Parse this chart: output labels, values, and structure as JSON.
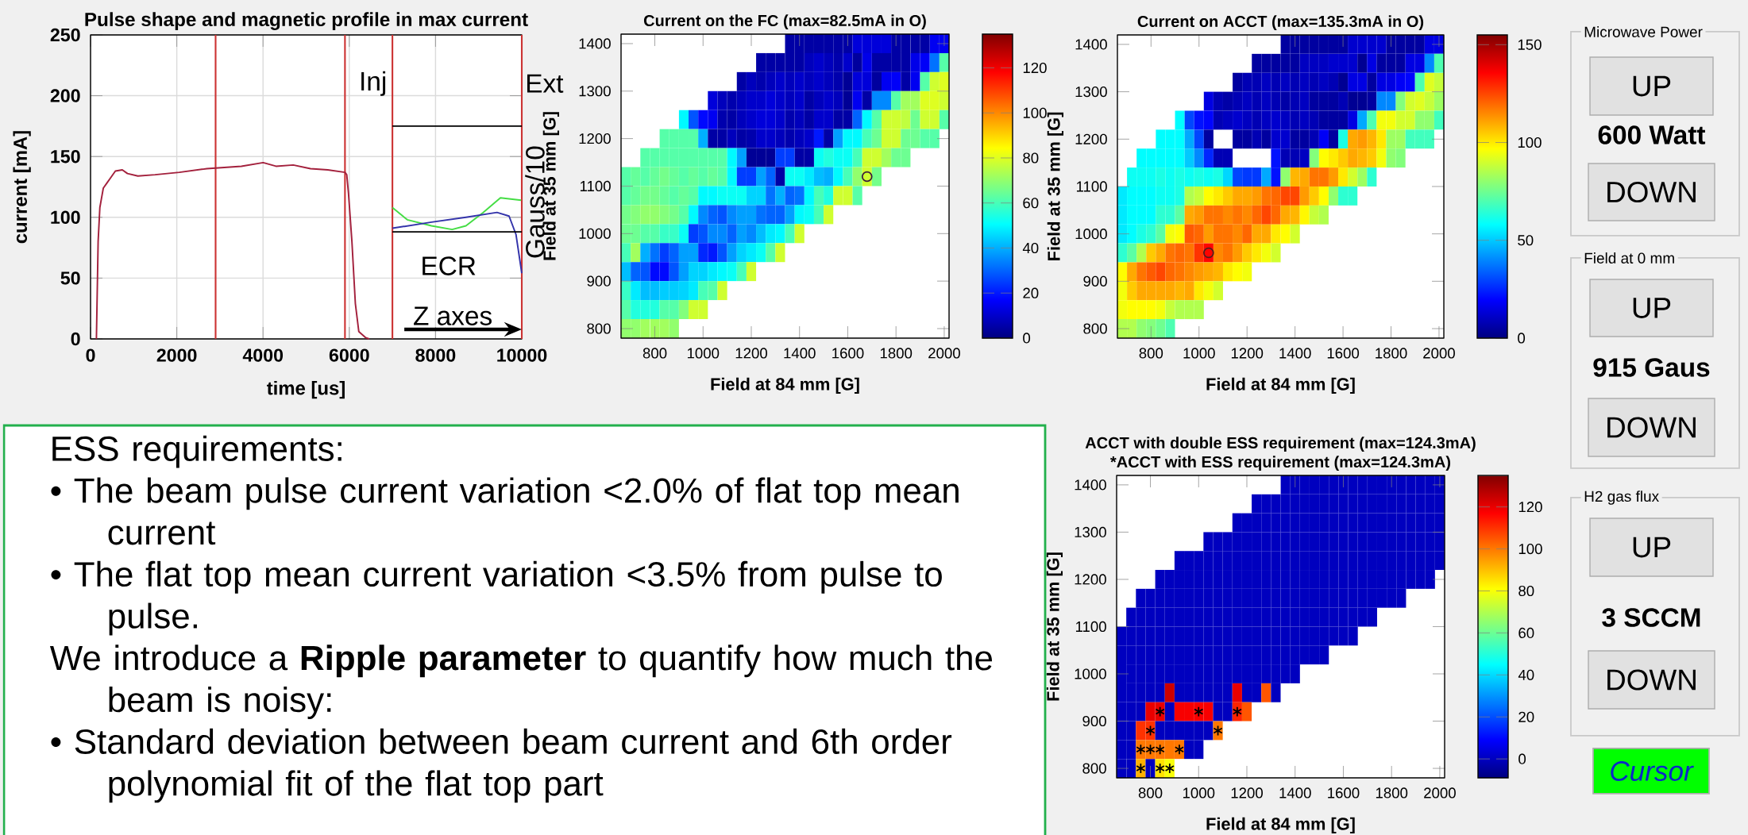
{
  "chart_data": [
    {
      "type": "line",
      "title": "Pulse shape and magnetic profile in max current",
      "xlabel": "time [us]",
      "ylabel": "current [mA]",
      "y2label": "Gauss/10",
      "xlim": [
        0,
        10000
      ],
      "ylim": [
        0,
        250
      ],
      "xticks": [
        0,
        2000,
        4000,
        6000,
        8000,
        10000
      ],
      "yticks": [
        0,
        50,
        100,
        150,
        200,
        250
      ],
      "grid": true,
      "series": [
        {
          "color": "#a3203c",
          "x": [
            136,
            176,
            216,
            296,
            376,
            456,
            576,
            736,
            856,
            1097,
            1497,
            2058,
            2698,
            3499,
            4003,
            4300,
            4700,
            5100,
            5500,
            5900,
            5941,
            5981,
            6061,
            6141,
            6221,
            6381,
            6460
          ],
          "values": [
            0,
            80,
            108,
            124,
            128,
            132,
            138,
            139,
            136,
            134,
            135,
            137,
            140,
            142,
            145,
            142,
            143,
            140,
            139,
            137,
            135,
            120,
            80,
            29,
            6,
            1,
            0
          ]
        },
        {
          "color": "#44dd44",
          "x": [
            7000,
            7344,
            7905,
            8385,
            8705,
            9105,
            9505,
            9985
          ],
          "values": [
            108,
            98,
            93,
            90,
            93,
            104,
            116,
            114
          ]
        },
        {
          "color": "#3333aa",
          "x": [
            7000,
            7905,
            8705,
            9425,
            9705,
            9865,
            10000
          ],
          "values": [
            91,
            96,
            100,
            104,
            101,
            86,
            54
          ]
        },
        {
          "color": "#000000",
          "x": [
            7000,
            10000
          ],
          "values": [
            175,
            175
          ]
        },
        {
          "color": "#000000",
          "x": [
            7000,
            10000
          ],
          "values": [
            88,
            88
          ]
        }
      ],
      "ref_lines": [
        {
          "axis": "x",
          "value": 2900,
          "color": "#cc3333"
        },
        {
          "axis": "x",
          "value": 5900,
          "color": "#cc3333"
        },
        {
          "axis": "x",
          "value": 7000,
          "color": "#cc3333"
        },
        {
          "axis": "x",
          "value": 10000,
          "color": "#cc3333"
        }
      ],
      "annotations": [
        "Inj",
        "Ext",
        "ECR",
        "Z axes"
      ]
    },
    {
      "type": "heatmap",
      "title": "Current on the FC (max=82.5mA in O)",
      "xlabel": "Field at 84 mm [G]",
      "ylabel": "Field at 35 mm [G]",
      "x": [
        680,
        720,
        760,
        800,
        840,
        880,
        920,
        960,
        1000,
        1040,
        1080,
        1120,
        1160,
        1200,
        1240,
        1280,
        1320,
        1360,
        1400,
        1440,
        1480,
        1520,
        1560,
        1600,
        1640,
        1680,
        1720,
        1760,
        1800,
        1840,
        1880,
        1920,
        1960,
        2000
      ],
      "y": [
        1400,
        1360,
        1320,
        1280,
        1240,
        1200,
        1160,
        1120,
        1080,
        1040,
        1000,
        960,
        920,
        880,
        840,
        800
      ],
      "xlim": [
        660,
        2020
      ],
      "ylim": [
        780,
        1420
      ],
      "xticks": [
        800,
        1000,
        1200,
        1400,
        1600,
        1800,
        2000
      ],
      "yticks": [
        800,
        900,
        1000,
        1100,
        1200,
        1300,
        1400
      ],
      "clim": [
        0,
        135
      ],
      "cticks": [
        0,
        20,
        40,
        60,
        80,
        100,
        120
      ],
      "cells": [
        [
          null,
          null,
          null,
          null,
          null,
          null,
          null,
          null,
          null,
          null,
          null,
          null,
          null,
          null,
          null,
          null,
          null,
          5,
          5,
          5,
          5,
          5,
          5,
          5,
          12,
          12,
          12,
          12,
          5,
          5,
          5,
          5,
          15,
          15
        ],
        [
          null,
          null,
          null,
          null,
          null,
          null,
          null,
          null,
          null,
          null,
          null,
          null,
          null,
          null,
          5,
          5,
          5,
          5,
          5,
          8,
          10,
          8,
          6,
          10,
          4,
          14,
          5,
          5,
          5,
          5,
          14,
          16,
          32,
          62
        ],
        [
          null,
          null,
          null,
          null,
          null,
          null,
          null,
          null,
          null,
          null,
          null,
          null,
          5,
          8,
          6,
          8,
          10,
          8,
          10,
          8,
          10,
          8,
          6,
          3,
          12,
          12,
          4,
          15,
          16,
          5,
          15,
          62,
          78,
          80
        ],
        [
          null,
          null,
          null,
          null,
          null,
          null,
          null,
          null,
          null,
          12,
          8,
          6,
          8,
          10,
          10,
          12,
          10,
          8,
          10,
          5,
          8,
          10,
          8,
          3,
          15,
          5,
          35,
          35,
          62,
          72,
          72,
          80,
          80,
          78
        ],
        [
          null,
          null,
          null,
          null,
          null,
          null,
          50,
          28,
          18,
          15,
          6,
          5,
          8,
          10,
          12,
          12,
          10,
          6,
          8,
          5,
          10,
          10,
          5,
          5,
          30,
          50,
          62,
          78,
          78,
          76,
          65,
          78,
          78,
          62
        ],
        [
          null,
          null,
          null,
          null,
          62,
          62,
          62,
          62,
          40,
          5,
          5,
          8,
          5,
          6,
          10,
          10,
          8,
          6,
          8,
          10,
          20,
          5,
          38,
          50,
          50,
          60,
          65,
          78,
          78,
          65,
          65,
          62,
          62,
          null
        ],
        [
          null,
          null,
          62,
          62,
          62,
          62,
          62,
          62,
          62,
          62,
          62,
          50,
          38,
          3,
          3,
          3,
          25,
          25,
          5,
          5,
          52,
          55,
          52,
          52,
          60,
          78,
          78,
          72,
          65,
          65,
          null,
          null,
          null,
          null
        ],
        [
          62,
          64,
          62,
          64,
          66,
          64,
          62,
          64,
          62,
          64,
          62,
          50,
          25,
          25,
          38,
          30,
          5,
          52,
          52,
          48,
          42,
          40,
          50,
          60,
          70,
          78,
          66,
          null,
          null,
          null,
          null,
          null,
          null,
          null
        ],
        [
          62,
          64,
          66,
          66,
          64,
          62,
          64,
          62,
          50,
          50,
          52,
          52,
          52,
          45,
          45,
          32,
          40,
          30,
          32,
          50,
          60,
          55,
          78,
          78,
          62,
          null,
          null,
          null,
          null,
          null,
          null,
          null,
          null,
          null
        ],
        [
          66,
          68,
          70,
          70,
          68,
          66,
          62,
          50,
          35,
          30,
          28,
          35,
          38,
          38,
          32,
          30,
          30,
          38,
          50,
          52,
          60,
          78,
          null,
          null,
          null,
          null,
          null,
          null,
          null,
          null,
          null,
          null,
          null,
          null
        ],
        [
          65,
          65,
          62,
          62,
          58,
          58,
          52,
          25,
          28,
          35,
          35,
          30,
          38,
          35,
          42,
          48,
          50,
          60,
          78,
          null,
          null,
          null,
          null,
          null,
          null,
          null,
          null,
          null,
          null,
          null,
          null,
          null,
          null,
          null
        ],
        [
          60,
          72,
          40,
          32,
          25,
          30,
          38,
          38,
          22,
          20,
          28,
          38,
          45,
          48,
          52,
          62,
          78,
          null,
          null,
          null,
          null,
          null,
          null,
          null,
          null,
          null,
          null,
          null,
          null,
          null,
          null,
          null,
          null,
          null
        ],
        [
          42,
          30,
          28,
          18,
          18,
          28,
          38,
          45,
          45,
          48,
          50,
          52,
          60,
          78,
          null,
          null,
          null,
          null,
          null,
          null,
          null,
          null,
          null,
          null,
          null,
          null,
          null,
          null,
          null,
          null,
          null,
          null,
          null,
          null
        ],
        [
          58,
          48,
          42,
          42,
          44,
          44,
          45,
          48,
          60,
          62,
          78,
          null,
          null,
          null,
          null,
          null,
          null,
          null,
          null,
          null,
          null,
          null,
          null,
          null,
          null,
          null,
          null,
          null,
          null,
          null,
          null,
          null,
          null,
          null
        ],
        [
          62,
          55,
          55,
          55,
          62,
          62,
          68,
          78,
          78,
          null,
          null,
          null,
          null,
          null,
          null,
          null,
          null,
          null,
          null,
          null,
          null,
          null,
          null,
          null,
          null,
          null,
          null,
          null,
          null,
          null,
          null,
          null,
          null,
          null
        ],
        [
          70,
          70,
          72,
          72,
          72,
          70,
          null,
          null,
          null,
          null,
          null,
          null,
          null,
          null,
          null,
          null,
          null,
          null,
          null,
          null,
          null,
          null,
          null,
          null,
          null,
          null,
          null,
          null,
          null,
          null,
          null,
          null,
          null,
          null
        ]
      ],
      "series": [
        {
          "type": "scatter",
          "marker": "circle",
          "color": "#3c1e3c",
          "x": [
            1680
          ],
          "values": [
            1120
          ]
        }
      ]
    },
    {
      "type": "heatmap",
      "title": "Current on ACCT (max=135.3mA in O)",
      "xlabel": "Field at 84 mm [G]",
      "ylabel": "Field at 35 mm [G]",
      "x": [
        680,
        720,
        760,
        800,
        840,
        880,
        920,
        960,
        1000,
        1040,
        1080,
        1120,
        1160,
        1200,
        1240,
        1280,
        1320,
        1360,
        1400,
        1440,
        1480,
        1520,
        1560,
        1600,
        1640,
        1680,
        1720,
        1760,
        1800,
        1840,
        1880,
        1920,
        1960,
        2000
      ],
      "y": [
        1400,
        1360,
        1320,
        1280,
        1240,
        1200,
        1160,
        1120,
        1080,
        1040,
        1000,
        960,
        920,
        880,
        840,
        800
      ],
      "xlim": [
        660,
        2020
      ],
      "ylim": [
        780,
        1420
      ],
      "xticks": [
        800,
        1000,
        1200,
        1400,
        1600,
        1800,
        2000
      ],
      "yticks": [
        800,
        900,
        1000,
        1100,
        1200,
        1300,
        1400
      ],
      "clim": [
        0,
        155
      ],
      "cticks": [
        0,
        50,
        100,
        150
      ],
      "cells": [
        [
          null,
          null,
          null,
          null,
          null,
          null,
          null,
          null,
          null,
          null,
          null,
          null,
          null,
          null,
          null,
          null,
          null,
          5,
          5,
          5,
          5,
          5,
          5,
          5,
          12,
          12,
          12,
          12,
          5,
          5,
          5,
          5,
          15,
          15
        ],
        [
          null,
          null,
          null,
          null,
          null,
          null,
          null,
          null,
          null,
          null,
          null,
          null,
          null,
          null,
          5,
          5,
          5,
          5,
          5,
          10,
          10,
          10,
          12,
          12,
          12,
          3,
          15,
          5,
          5,
          5,
          15,
          15,
          40,
          70
        ],
        [
          null,
          null,
          null,
          null,
          null,
          null,
          null,
          null,
          null,
          null,
          null,
          null,
          5,
          8,
          8,
          10,
          8,
          10,
          8,
          10,
          8,
          10,
          8,
          3,
          15,
          15,
          5,
          15,
          15,
          18,
          20,
          70,
          92,
          88
        ],
        [
          null,
          null,
          null,
          null,
          null,
          null,
          null,
          null,
          null,
          15,
          8,
          6,
          8,
          10,
          8,
          10,
          8,
          6,
          8,
          10,
          5,
          5,
          5,
          8,
          3,
          3,
          5,
          40,
          40,
          78,
          90,
          92,
          88,
          82
        ],
        [
          null,
          null,
          null,
          null,
          null,
          null,
          58,
          30,
          22,
          20,
          8,
          10,
          12,
          10,
          8,
          10,
          12,
          10,
          8,
          10,
          8,
          5,
          5,
          5,
          15,
          45,
          70,
          95,
          95,
          90,
          90,
          80,
          80,
          68
        ],
        [
          null,
          null,
          null,
          null,
          58,
          58,
          58,
          45,
          30,
          5,
          null,
          null,
          5,
          5,
          8,
          5,
          12,
          12,
          5,
          5,
          8,
          18,
          5,
          62,
          110,
          112,
          108,
          100,
          82,
          82,
          68,
          68,
          68,
          null
        ],
        [
          null,
          null,
          58,
          58,
          58,
          58,
          58,
          50,
          40,
          25,
          8,
          8,
          null,
          null,
          null,
          null,
          22,
          8,
          8,
          10,
          78,
          97,
          100,
          105,
          110,
          108,
          105,
          95,
          80,
          78,
          null,
          null,
          null,
          null
        ],
        [
          null,
          60,
          60,
          60,
          62,
          60,
          62,
          60,
          62,
          60,
          62,
          52,
          30,
          28,
          28,
          45,
          22,
          80,
          108,
          110,
          118,
          118,
          112,
          100,
          90,
          82,
          65,
          null,
          null,
          null,
          null,
          null,
          null,
          null
        ],
        [
          55,
          58,
          58,
          58,
          60,
          60,
          62,
          85,
          88,
          97,
          100,
          105,
          110,
          110,
          112,
          118,
          120,
          125,
          125,
          112,
          105,
          97,
          80,
          65,
          65,
          null,
          null,
          null,
          null,
          null,
          null,
          null,
          null,
          null
        ],
        [
          55,
          58,
          58,
          58,
          65,
          65,
          72,
          110,
          112,
          118,
          118,
          115,
          118,
          115,
          120,
          125,
          120,
          110,
          108,
          98,
          88,
          85,
          null,
          null,
          null,
          null,
          null,
          null,
          null,
          null,
          null,
          null,
          null,
          null
        ],
        [
          55,
          58,
          62,
          65,
          72,
          95,
          97,
          122,
          120,
          112,
          118,
          118,
          115,
          120,
          110,
          110,
          100,
          97,
          90,
          null,
          null,
          null,
          null,
          null,
          null,
          null,
          null,
          null,
          null,
          null,
          null,
          null,
          null,
          null
        ],
        [
          65,
          72,
          85,
          105,
          110,
          118,
          120,
          118,
          128,
          135,
          115,
          118,
          112,
          105,
          100,
          95,
          90,
          null,
          null,
          null,
          null,
          null,
          null,
          null,
          null,
          null,
          null,
          null,
          null,
          null,
          null,
          null,
          null,
          null
        ],
        [
          97,
          110,
          118,
          122,
          125,
          120,
          118,
          115,
          112,
          110,
          108,
          100,
          97,
          95,
          null,
          null,
          null,
          null,
          null,
          null,
          null,
          null,
          null,
          null,
          null,
          null,
          null,
          null,
          null,
          null,
          null,
          null,
          null,
          null
        ],
        [
          95,
          105,
          110,
          110,
          110,
          110,
          108,
          110,
          100,
          95,
          90,
          null,
          null,
          null,
          null,
          null,
          null,
          null,
          null,
          null,
          null,
          null,
          null,
          null,
          null,
          null,
          null,
          null,
          null,
          null,
          null,
          null,
          null,
          null
        ],
        [
          95,
          97,
          97,
          97,
          95,
          88,
          85,
          85,
          85,
          null,
          null,
          null,
          null,
          null,
          null,
          null,
          null,
          null,
          null,
          null,
          null,
          null,
          null,
          null,
          null,
          null,
          null,
          null,
          null,
          null,
          null,
          null,
          null,
          null
        ],
        [
          85,
          85,
          80,
          78,
          75,
          70,
          null,
          null,
          null,
          null,
          null,
          null,
          null,
          null,
          null,
          null,
          null,
          null,
          null,
          null,
          null,
          null,
          null,
          null,
          null,
          null,
          null,
          null,
          null,
          null,
          null,
          null,
          null,
          null
        ]
      ],
      "series": [
        {
          "type": "scatter",
          "marker": "circle",
          "color": "#502020",
          "x": [
            1040
          ],
          "values": [
            960
          ]
        }
      ]
    },
    {
      "type": "heatmap",
      "title": "ACCT with double ESS requirement (max=124.3mA)",
      "subtitle": "*ACCT with ESS requirement (max=124.3mA)",
      "xlabel": "Field at 84 mm [G]",
      "ylabel": "Field at 35 mm [G]",
      "x": [
        680,
        720,
        760,
        800,
        840,
        880,
        920,
        960,
        1000,
        1040,
        1080,
        1120,
        1160,
        1200,
        1240,
        1280,
        1320,
        1360,
        1400,
        1440,
        1480,
        1520,
        1560,
        1600,
        1640,
        1680,
        1720,
        1760,
        1800,
        1840,
        1880,
        1920,
        1960,
        2000
      ],
      "y": [
        1400,
        1360,
        1320,
        1280,
        1240,
        1200,
        1160,
        1120,
        1080,
        1040,
        1000,
        960,
        920,
        880,
        840,
        800
      ],
      "xlim": [
        660,
        2020
      ],
      "ylim": [
        780,
        1420
      ],
      "xticks": [
        800,
        1000,
        1200,
        1400,
        1600,
        1800,
        2000
      ],
      "yticks": [
        800,
        900,
        1000,
        1100,
        1200,
        1300,
        1400
      ],
      "clim": [
        -9,
        135
      ],
      "cticks": [
        0,
        20,
        40,
        60,
        80,
        100,
        120
      ],
      "cells": [
        [
          null,
          null,
          null,
          null,
          null,
          null,
          null,
          null,
          null,
          null,
          null,
          null,
          null,
          null,
          null,
          null,
          null,
          0,
          0,
          0,
          0,
          0,
          0,
          0,
          0,
          0,
          0,
          0,
          0,
          0,
          0,
          0,
          0,
          0
        ],
        [
          null,
          null,
          null,
          null,
          null,
          null,
          null,
          null,
          null,
          null,
          null,
          null,
          null,
          null,
          0,
          0,
          0,
          0,
          0,
          0,
          0,
          0,
          0,
          0,
          0,
          0,
          0,
          0,
          0,
          0,
          0,
          0,
          0,
          0
        ],
        [
          null,
          null,
          null,
          null,
          null,
          null,
          null,
          null,
          null,
          null,
          null,
          null,
          0,
          0,
          0,
          0,
          0,
          0,
          0,
          0,
          0,
          0,
          0,
          0,
          0,
          0,
          0,
          0,
          0,
          0,
          0,
          0,
          0,
          0
        ],
        [
          null,
          null,
          null,
          null,
          null,
          null,
          null,
          null,
          null,
          0,
          0,
          0,
          0,
          0,
          0,
          0,
          0,
          0,
          0,
          0,
          0,
          0,
          0,
          0,
          0,
          0,
          0,
          0,
          0,
          0,
          0,
          0,
          0,
          0
        ],
        [
          null,
          null,
          null,
          null,
          null,
          null,
          0,
          0,
          0,
          0,
          0,
          0,
          0,
          0,
          0,
          0,
          0,
          0,
          0,
          0,
          0,
          0,
          0,
          0,
          0,
          0,
          0,
          0,
          0,
          0,
          0,
          0,
          0,
          0
        ],
        [
          null,
          null,
          null,
          null,
          0,
          0,
          0,
          0,
          0,
          0,
          0,
          0,
          0,
          0,
          0,
          0,
          0,
          0,
          0,
          0,
          0,
          0,
          0,
          0,
          0,
          0,
          0,
          0,
          0,
          0,
          0,
          0,
          0,
          null
        ],
        [
          null,
          null,
          0,
          0,
          0,
          0,
          0,
          0,
          0,
          0,
          0,
          0,
          0,
          0,
          0,
          0,
          0,
          0,
          0,
          0,
          0,
          0,
          0,
          0,
          0,
          0,
          0,
          0,
          0,
          0,
          null,
          null,
          null,
          null
        ],
        [
          null,
          0,
          0,
          0,
          0,
          0,
          0,
          0,
          0,
          0,
          0,
          0,
          0,
          0,
          0,
          0,
          0,
          0,
          0,
          0,
          0,
          0,
          0,
          0,
          0,
          0,
          0,
          null,
          null,
          null,
          null,
          null,
          null,
          null
        ],
        [
          0,
          0,
          0,
          0,
          0,
          0,
          0,
          0,
          0,
          0,
          0,
          0,
          0,
          0,
          0,
          0,
          0,
          0,
          0,
          0,
          0,
          0,
          0,
          0,
          0,
          null,
          null,
          null,
          null,
          null,
          null,
          null,
          null,
          null
        ],
        [
          0,
          0,
          0,
          0,
          0,
          0,
          0,
          0,
          0,
          0,
          0,
          0,
          0,
          0,
          0,
          0,
          0,
          0,
          0,
          0,
          0,
          0,
          null,
          null,
          null,
          null,
          null,
          null,
          null,
          null,
          null,
          null,
          null,
          null
        ],
        [
          0,
          0,
          0,
          0,
          0,
          0,
          0,
          0,
          0,
          0,
          0,
          0,
          0,
          0,
          0,
          0,
          0,
          0,
          0,
          null,
          null,
          null,
          null,
          null,
          null,
          null,
          null,
          null,
          null,
          null,
          null,
          null,
          null,
          null
        ],
        [
          0,
          0,
          0,
          0,
          0,
          124,
          0,
          0,
          0,
          0,
          0,
          0,
          120,
          0,
          0,
          105,
          0,
          null,
          null,
          null,
          null,
          null,
          null,
          null,
          null,
          null,
          null,
          null,
          null,
          null,
          null,
          null,
          null,
          null
        ],
        [
          0,
          0,
          0,
          120,
          120,
          0,
          118,
          118,
          118,
          118,
          0,
          0,
          112,
          105,
          null,
          null,
          null,
          null,
          null,
          null,
          null,
          null,
          null,
          null,
          null,
          null,
          null,
          null,
          null,
          null,
          null,
          null,
          null,
          null
        ],
        [
          0,
          0,
          110,
          110,
          0,
          0,
          0,
          0,
          0,
          0,
          100,
          null,
          null,
          null,
          null,
          null,
          null,
          null,
          null,
          null,
          null,
          null,
          null,
          null,
          null,
          null,
          null,
          null,
          null,
          null,
          null,
          null,
          null,
          null
        ],
        [
          0,
          0,
          100,
          100,
          100,
          100,
          100,
          0,
          0,
          null,
          null,
          null,
          null,
          null,
          null,
          null,
          null,
          null,
          null,
          null,
          null,
          null,
          null,
          null,
          null,
          null,
          null,
          null,
          null,
          null,
          null,
          null,
          null,
          null
        ],
        [
          0,
          0,
          92,
          0,
          85,
          80,
          null,
          null,
          null,
          null,
          null,
          null,
          null,
          null,
          null,
          null,
          null,
          null,
          null,
          null,
          null,
          null,
          null,
          null,
          null,
          null,
          null,
          null,
          null,
          null,
          null,
          null,
          null,
          null
        ]
      ],
      "series": [
        {
          "type": "scatter",
          "marker": "cross",
          "color": "#000000",
          "x": [
            760,
            840,
            880,
            760,
            800,
            840,
            920,
            800,
            1080,
            840,
            1000,
            1160
          ],
          "values": [
            800,
            800,
            800,
            840,
            840,
            840,
            840,
            880,
            880,
            920,
            920,
            920
          ]
        }
      ]
    },
    {
      "type": "other",
      "title": "ESS requirements:",
      "annotations": [
        "• The beam pulse current variation <2.0% of flat top mean current",
        "• The flat top mean current variation <3.5% from pulse to pulse.",
        "We introduce a **Ripple parameter** to quantify how much the beam is noisy:",
        "• Standard deviation between beam current and 6th order polynomial fit of the flat top part"
      ]
    },
    {
      "type": "other",
      "annotations": [
        "Microwave Power",
        "UP",
        "600 Watt",
        "DOWN",
        "Field at 0 mm",
        "UP",
        "915 Gaus",
        "DOWN",
        "H2 gas flux",
        "UP",
        "3 SCCM",
        "DOWN",
        "Cursor"
      ]
    }
  ]
}
